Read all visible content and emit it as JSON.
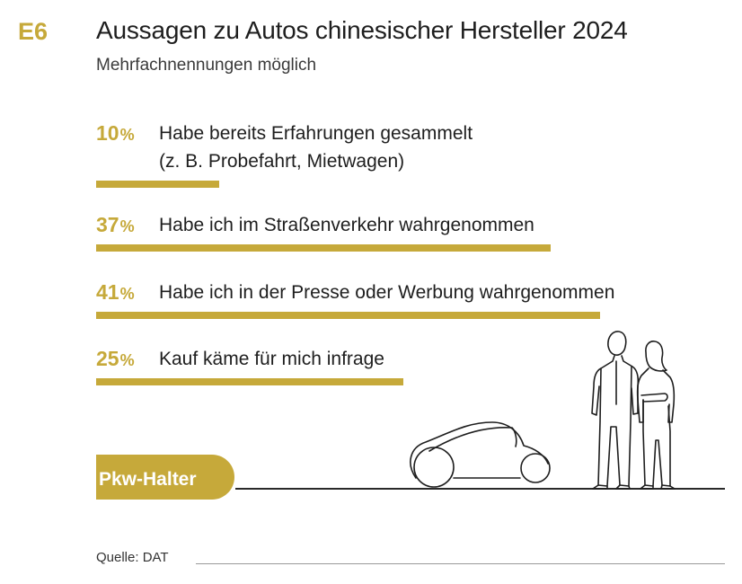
{
  "figure_code": "E6",
  "title": "Aussagen zu Autos chinesischer Hersteller 2024",
  "subtitle": "Mehrfachnennungen möglich",
  "accent_color": "#c6a93a",
  "percent_sign": "%",
  "chart_data": {
    "type": "bar",
    "orientation": "horizontal",
    "unit": "%",
    "categories": [
      [
        "Habe bereits Erfahrungen gesammelt",
        "(z. B. Probefahrt, Mietwagen)"
      ],
      [
        "Habe ich im Straßenverkehr wahrgenommen"
      ],
      [
        "Habe ich in der Presse oder Werbung wahrgenommen"
      ],
      [
        "Kauf käme für mich infrage"
      ]
    ],
    "values": [
      10,
      37,
      41,
      25
    ],
    "xlim": [
      0,
      41
    ],
    "grid": false
  },
  "badge_label": "Pkw-Halter",
  "illustration_icons": [
    "car-outline-icon",
    "two-people-outline-icon"
  ],
  "source": "Quelle: DAT"
}
